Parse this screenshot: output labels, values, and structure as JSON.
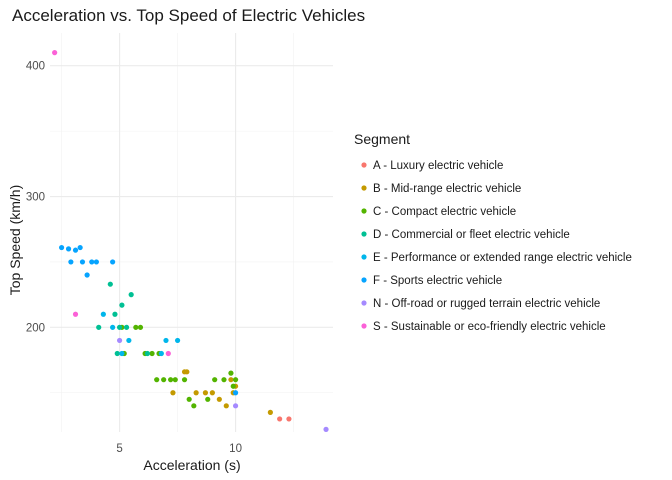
{
  "chart_data": {
    "type": "scatter",
    "title": "Acceleration vs. Top Speed of Electric Vehicles",
    "xlabel": "Acceleration (s)",
    "ylabel": "Top Speed (km/h)",
    "xlim": [
      2,
      14.2
    ],
    "ylim": [
      120,
      425
    ],
    "xticks": [
      5,
      10
    ],
    "yticks": [
      200,
      300,
      400
    ],
    "grid": true,
    "legend_position": "right",
    "legend_title": "Segment",
    "series": [
      {
        "name": "A - Luxury electric vehicle",
        "color": "#F8766D",
        "points": [
          [
            11.9,
            130
          ],
          [
            12.3,
            130
          ]
        ]
      },
      {
        "name": "B - Mid-range electric vehicle",
        "color": "#C49A00",
        "points": [
          [
            7.3,
            150
          ],
          [
            7.8,
            166
          ],
          [
            7.9,
            166
          ],
          [
            8.3,
            150
          ],
          [
            8.7,
            150
          ],
          [
            9.0,
            150
          ],
          [
            9.3,
            145
          ],
          [
            9.6,
            140
          ],
          [
            9.8,
            160
          ],
          [
            9.9,
            150
          ],
          [
            10.0,
            155
          ],
          [
            11.5,
            135
          ]
        ]
      },
      {
        "name": "C - Compact electric vehicle",
        "color": "#53B400",
        "points": [
          [
            5.1,
            200
          ],
          [
            5.2,
            180
          ],
          [
            5.7,
            200
          ],
          [
            5.9,
            200
          ],
          [
            6.1,
            180
          ],
          [
            6.4,
            180
          ],
          [
            6.6,
            160
          ],
          [
            6.7,
            180
          ],
          [
            6.9,
            160
          ],
          [
            7.2,
            160
          ],
          [
            7.4,
            160
          ],
          [
            7.8,
            160
          ],
          [
            8.0,
            145
          ],
          [
            8.2,
            140
          ],
          [
            8.8,
            145
          ],
          [
            9.1,
            160
          ],
          [
            9.5,
            160
          ],
          [
            9.8,
            165
          ],
          [
            9.9,
            155
          ],
          [
            10.0,
            160
          ]
        ]
      },
      {
        "name": "D - Commercial or fleet electric vehicle",
        "color": "#00C094",
        "points": [
          [
            4.1,
            200
          ],
          [
            4.6,
            233
          ],
          [
            4.8,
            210
          ],
          [
            4.9,
            180
          ],
          [
            5.0,
            200
          ],
          [
            5.1,
            217
          ],
          [
            5.3,
            200
          ],
          [
            5.5,
            225
          ],
          [
            6.2,
            180
          ]
        ]
      },
      {
        "name": "E - Performance or extended range electric vehicle",
        "color": "#00B6EB",
        "points": [
          [
            4.3,
            210
          ],
          [
            4.7,
            200
          ],
          [
            5.1,
            180
          ],
          [
            5.4,
            190
          ],
          [
            6.8,
            180
          ],
          [
            7.0,
            190
          ],
          [
            7.5,
            190
          ]
        ]
      },
      {
        "name": "F - Sports electric vehicle",
        "color": "#06A4FF",
        "points": [
          [
            2.5,
            261
          ],
          [
            2.8,
            260
          ],
          [
            2.9,
            250
          ],
          [
            3.1,
            259
          ],
          [
            3.3,
            261
          ],
          [
            3.4,
            250
          ],
          [
            3.6,
            240
          ],
          [
            3.8,
            250
          ],
          [
            4.0,
            250
          ],
          [
            4.7,
            250
          ],
          [
            10.0,
            150
          ]
        ]
      },
      {
        "name": "N - Off-road or rugged terrain electric vehicle",
        "color": "#A58AFF",
        "points": [
          [
            5.0,
            190
          ],
          [
            10.0,
            140
          ],
          [
            13.9,
            122
          ]
        ]
      },
      {
        "name": "S - Sustainable or eco-friendly electric vehicle",
        "color": "#FB61D7",
        "points": [
          [
            2.2,
            410
          ],
          [
            3.1,
            210
          ],
          [
            7.1,
            180
          ]
        ]
      }
    ]
  }
}
